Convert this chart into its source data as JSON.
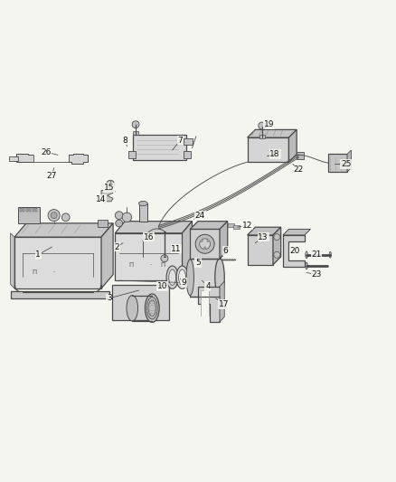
{
  "bg_color": "#f5f5f0",
  "lc": "#4a4a4a",
  "fig_w": 4.38,
  "fig_h": 5.33,
  "dpi": 100,
  "label_data": [
    [
      1,
      0.095,
      0.465,
      0.13,
      0.485
    ],
    [
      2,
      0.295,
      0.485,
      0.31,
      0.495
    ],
    [
      3,
      0.275,
      0.355,
      0.35,
      0.375
    ],
    [
      4,
      0.525,
      0.385,
      0.51,
      0.4
    ],
    [
      5,
      0.5,
      0.445,
      0.5,
      0.455
    ],
    [
      6,
      0.57,
      0.475,
      0.555,
      0.455
    ],
    [
      7,
      0.455,
      0.755,
      0.435,
      0.73
    ],
    [
      8,
      0.315,
      0.755,
      0.32,
      0.74
    ],
    [
      9,
      0.465,
      0.395,
      0.455,
      0.405
    ],
    [
      10,
      0.41,
      0.385,
      0.42,
      0.395
    ],
    [
      11,
      0.445,
      0.48,
      0.44,
      0.47
    ],
    [
      12,
      0.625,
      0.54,
      0.6,
      0.535
    ],
    [
      13,
      0.665,
      0.51,
      0.645,
      0.495
    ],
    [
      14,
      0.255,
      0.605,
      0.265,
      0.595
    ],
    [
      15,
      0.275,
      0.635,
      0.29,
      0.625
    ],
    [
      16,
      0.375,
      0.51,
      0.385,
      0.505
    ],
    [
      17,
      0.565,
      0.34,
      0.545,
      0.355
    ],
    [
      18,
      0.695,
      0.72,
      0.675,
      0.715
    ],
    [
      19,
      0.68,
      0.795,
      0.665,
      0.783
    ],
    [
      20,
      0.745,
      0.475,
      0.73,
      0.47
    ],
    [
      21,
      0.8,
      0.465,
      0.775,
      0.46
    ],
    [
      22,
      0.755,
      0.68,
      0.74,
      0.695
    ],
    [
      23,
      0.8,
      0.415,
      0.775,
      0.42
    ],
    [
      24,
      0.505,
      0.565,
      0.49,
      0.555
    ],
    [
      25,
      0.875,
      0.695,
      0.845,
      0.695
    ],
    [
      26,
      0.115,
      0.725,
      0.145,
      0.718
    ],
    [
      27,
      0.13,
      0.665,
      0.135,
      0.685
    ]
  ]
}
